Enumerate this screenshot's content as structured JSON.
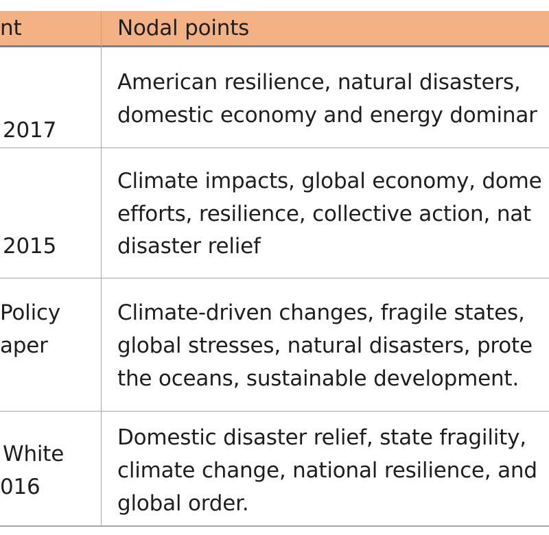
{
  "header": {
    "col1": "nt",
    "col2": "Nodal points"
  },
  "rows": [
    {
      "doc": [
        "2017"
      ],
      "points": [
        "American resilience, natural disasters,",
        "domestic economy and energy dominar"
      ]
    },
    {
      "doc": [
        "2015"
      ],
      "points": [
        "Climate impacts, global economy, dome",
        "efforts, resilience, collective action, nat",
        "disaster relief"
      ]
    },
    {
      "doc": [
        "Policy",
        "aper"
      ],
      "points": [
        "Climate-driven changes, fragile states,",
        "global stresses, natural disasters, prote",
        "the oceans, sustainable development."
      ]
    },
    {
      "doc": [
        "White",
        "016"
      ],
      "points": [
        "Domestic disaster relief, state fragility,",
        "climate change, national resilience, and",
        "global order."
      ]
    }
  ]
}
